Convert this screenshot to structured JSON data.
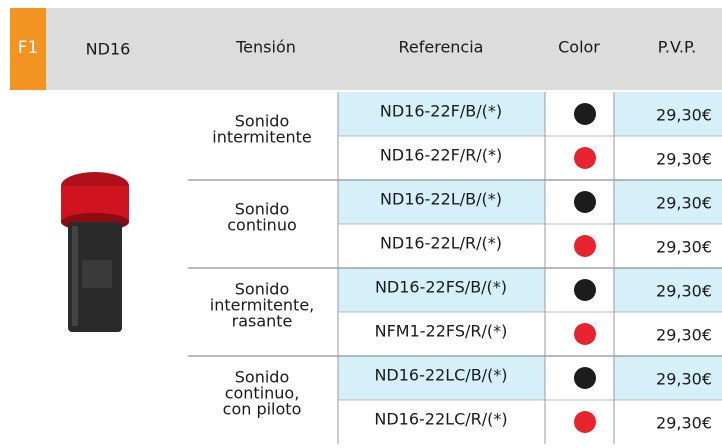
{
  "header": {
    "tag": "F1",
    "model": "ND16",
    "columns": [
      "Tensión",
      "Referencia",
      "Color",
      "P.V.P."
    ]
  },
  "groups": [
    {
      "tension": [
        "Sonido",
        "intermitente"
      ],
      "items": [
        {
          "ref": "ND16-22F/B/(*)",
          "color": "#1c1c1c",
          "price": "29,30€"
        },
        {
          "ref": "ND16-22F/R/(*)",
          "color": "#e8232d",
          "price": "29,30€"
        }
      ]
    },
    {
      "tension": [
        "Sonido",
        "continuo"
      ],
      "items": [
        {
          "ref": "ND16-22L/B/(*)",
          "color": "#1c1c1c",
          "price": "29,30€"
        },
        {
          "ref": "ND16-22L/R/(*)",
          "color": "#e8232d",
          "price": "29,30€"
        }
      ]
    },
    {
      "tension": [
        "Sonido",
        "intermitente,",
        "rasante"
      ],
      "items": [
        {
          "ref": "ND16-22FS/B/(*)",
          "color": "#1c1c1c",
          "price": "29,30€"
        },
        {
          "ref": "NFM1-22FS/R/(*)",
          "color": "#e8232d",
          "price": "29,30€"
        }
      ]
    },
    {
      "tension": [
        "Sonido",
        "continuo,",
        "con piloto"
      ],
      "items": [
        {
          "ref": "ND16-22LC/B/(*)",
          "color": "#1c1c1c",
          "price": "29,30€"
        },
        {
          "ref": "ND16-22LC/R/(*)",
          "color": "#e8232d",
          "price": "29,30€"
        }
      ]
    }
  ]
}
